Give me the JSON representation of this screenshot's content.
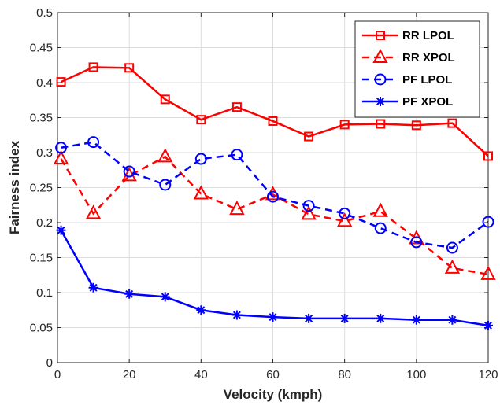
{
  "chart_data": {
    "type": "line",
    "title": "",
    "xlabel": "Velocity (kmph)",
    "ylabel": "Fairness index",
    "xlim": [
      0,
      120
    ],
    "ylim": [
      0,
      0.5
    ],
    "xticks": [
      0,
      20,
      40,
      60,
      80,
      100,
      120
    ],
    "yticks": [
      0,
      0.05,
      0.1,
      0.15,
      0.2,
      0.25,
      0.3,
      0.35,
      0.4,
      0.45,
      0.5
    ],
    "xtick_labels": [
      "0",
      "20",
      "40",
      "60",
      "80",
      "100",
      "120"
    ],
    "ytick_labels": [
      "0",
      "0.05",
      "0.1",
      "0.15",
      "0.2",
      "0.25",
      "0.3",
      "0.35",
      "0.4",
      "0.45",
      "0.5"
    ],
    "grid": true,
    "legend_position": "top-right",
    "x": [
      1,
      10,
      20,
      30,
      40,
      50,
      60,
      70,
      80,
      90,
      100,
      110,
      120
    ],
    "series": [
      {
        "name": "RR LPOL",
        "color": "#ff0000",
        "line_style": "solid",
        "marker": "square",
        "values": [
          0.401,
          0.422,
          0.421,
          0.376,
          0.347,
          0.365,
          0.345,
          0.323,
          0.34,
          0.341,
          0.339,
          0.342,
          0.295
        ]
      },
      {
        "name": "RR XPOL",
        "color": "#ff0000",
        "line_style": "dashed",
        "marker": "triangle",
        "values": [
          0.291,
          0.213,
          0.267,
          0.294,
          0.241,
          0.219,
          0.24,
          0.212,
          0.202,
          0.216,
          0.177,
          0.135,
          0.126
        ]
      },
      {
        "name": "PF LPOL",
        "color": "#0000ff",
        "line_style": "dashed",
        "marker": "circle",
        "values": [
          0.307,
          0.315,
          0.273,
          0.254,
          0.291,
          0.297,
          0.237,
          0.224,
          0.213,
          0.192,
          0.172,
          0.164,
          0.201
        ]
      },
      {
        "name": "PF XPOL",
        "color": "#0000ff",
        "line_style": "solid",
        "marker": "asterisk",
        "values": [
          0.189,
          0.107,
          0.098,
          0.094,
          0.075,
          0.068,
          0.065,
          0.063,
          0.063,
          0.063,
          0.061,
          0.061,
          0.053
        ]
      }
    ]
  }
}
